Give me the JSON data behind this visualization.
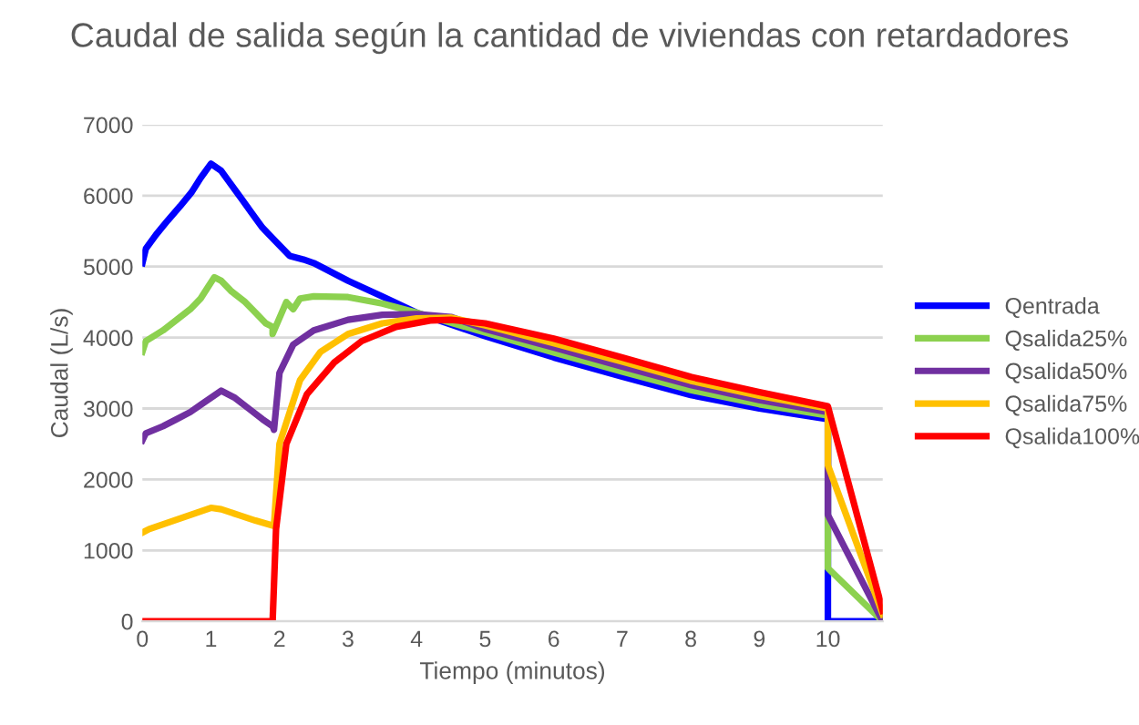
{
  "chart_data": {
    "type": "line",
    "title": "Caudal de salida según la cantidad de viviendas con retardadores",
    "xlabel": "Tiempo (minutos)",
    "ylabel": "Caudal (L/s)",
    "xlim": [
      0,
      10.8
    ],
    "xticks": [
      0,
      1,
      2,
      3,
      4,
      5,
      6,
      7,
      8,
      9,
      10
    ],
    "ylim": [
      0,
      7000
    ],
    "yticks": [
      0,
      1000,
      2000,
      3000,
      4000,
      5000,
      6000,
      7000
    ],
    "grid": "y",
    "legend": "right",
    "marker": "none",
    "line_style": "solid",
    "series": [
      {
        "name": "Qentrada",
        "color": "#0000ff",
        "x": [
          0,
          0.05,
          0.05,
          0.2,
          0.2,
          0.37,
          0.37,
          0.55,
          0.55,
          0.72,
          0.72,
          0.85,
          0.85,
          1.0,
          1.0,
          1.15,
          1.15,
          1.3,
          1.3,
          1.45,
          1.45,
          1.6,
          1.6,
          1.75,
          1.75,
          1.95,
          1.95,
          2.15,
          2.15,
          2.35,
          2.5,
          3,
          3.5,
          4,
          5,
          6,
          7,
          8,
          9,
          10,
          10,
          10.8
        ],
        "values": [
          5050,
          5250,
          5250,
          5450,
          5450,
          5650,
          5650,
          5850,
          5850,
          6050,
          6050,
          6250,
          6250,
          6450,
          6450,
          6350,
          6350,
          6150,
          6150,
          5950,
          5950,
          5750,
          5750,
          5550,
          5550,
          5350,
          5350,
          5150,
          5150,
          5100,
          5050,
          4800,
          4580,
          4350,
          4020,
          3720,
          3450,
          3190,
          3000,
          2850,
          0,
          0
        ]
      },
      {
        "name": "Qsalida25%",
        "color": "#8cd14f",
        "x": [
          0,
          0.05,
          0.05,
          0.3,
          0.3,
          0.5,
          0.5,
          0.7,
          0.7,
          0.85,
          0.85,
          0.95,
          0.95,
          1.05,
          1.05,
          1.15,
          1.15,
          1.3,
          1.3,
          1.5,
          1.5,
          1.65,
          1.65,
          1.8,
          1.8,
          1.9,
          1.9,
          2.1,
          2.2,
          2.3,
          2.5,
          3,
          3.5,
          4,
          5,
          6,
          7,
          8,
          9,
          10,
          10,
          10.8
        ],
        "values": [
          3800,
          3950,
          3950,
          4100,
          4100,
          4250,
          4250,
          4400,
          4400,
          4550,
          4550,
          4700,
          4700,
          4850,
          4850,
          4800,
          4800,
          4650,
          4650,
          4500,
          4500,
          4350,
          4350,
          4200,
          4200,
          4150,
          4050,
          4500,
          4400,
          4550,
          4580,
          4570,
          4480,
          4350,
          4070,
          3790,
          3520,
          3260,
          3060,
          2900,
          750,
          0
        ]
      },
      {
        "name": "Qsalida50%",
        "color": "#7030a0",
        "x": [
          0,
          0.05,
          0.05,
          0.3,
          0.3,
          0.5,
          0.5,
          0.7,
          0.7,
          0.85,
          0.85,
          1.0,
          1.0,
          1.15,
          1.15,
          1.35,
          1.35,
          1.55,
          1.55,
          1.75,
          1.75,
          1.9,
          1.92,
          2.0,
          2.2,
          2.5,
          3,
          3.5,
          4,
          4.5,
          5,
          6,
          7,
          8,
          9,
          10,
          10,
          10.8
        ],
        "values": [
          2550,
          2650,
          2650,
          2750,
          2750,
          2850,
          2850,
          2950,
          2950,
          3050,
          3050,
          3150,
          3150,
          3250,
          3250,
          3150,
          3150,
          3000,
          3000,
          2850,
          2850,
          2750,
          2700,
          3500,
          3900,
          4100,
          4250,
          4320,
          4330,
          4290,
          4120,
          3860,
          3590,
          3330,
          3120,
          2950,
          1500,
          0
        ]
      },
      {
        "name": "Qsalida75%",
        "color": "#ffc000",
        "x": [
          0,
          0.1,
          0.1,
          0.4,
          0.4,
          0.7,
          0.7,
          1.0,
          1.0,
          1.15,
          1.15,
          1.4,
          1.4,
          1.65,
          1.65,
          1.9,
          1.92,
          2.0,
          2.3,
          2.6,
          3,
          3.5,
          4,
          4.5,
          5,
          6,
          7,
          8,
          9,
          10,
          10,
          10.8
        ],
        "values": [
          1250,
          1300,
          1300,
          1400,
          1400,
          1500,
          1500,
          1600,
          1600,
          1580,
          1580,
          1500,
          1500,
          1420,
          1420,
          1350,
          1350,
          2500,
          3400,
          3800,
          4050,
          4200,
          4270,
          4280,
          4170,
          3920,
          3660,
          3390,
          3180,
          3000,
          2200,
          100
        ]
      },
      {
        "name": "Qsalida100%",
        "color": "#ff0000",
        "x": [
          0,
          1.9,
          1.95,
          2.1,
          2.4,
          2.8,
          3.2,
          3.7,
          4.2,
          4.5,
          5,
          6,
          7,
          8,
          9,
          10,
          10.8
        ],
        "values": [
          0,
          0,
          1300,
          2500,
          3200,
          3650,
          3950,
          4150,
          4240,
          4250,
          4200,
          3985,
          3720,
          3445,
          3230,
          3030,
          150
        ]
      }
    ]
  }
}
